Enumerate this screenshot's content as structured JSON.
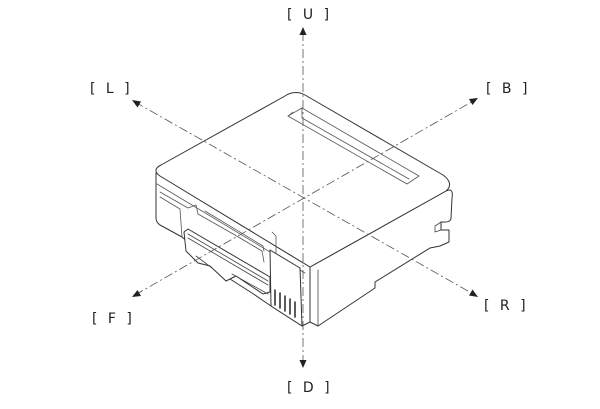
{
  "diagram": {
    "labels": {
      "up": "[ U ]",
      "down": "[ D ]",
      "left": "[ L ]",
      "back": "[ B ]",
      "front": "[ F ]",
      "right": "[ R ]"
    }
  }
}
